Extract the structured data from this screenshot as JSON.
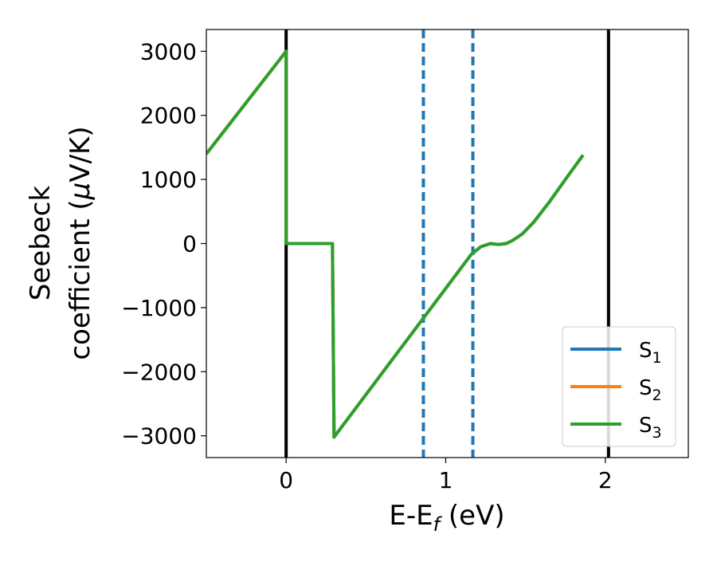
{
  "chart_data": {
    "type": "line",
    "title": "",
    "xlabel": {
      "main": "E-E",
      "sub": "f",
      "tail": " (eV)"
    },
    "ylabel": {
      "line1": "Seebeck",
      "line2_prefix": "coefficient  (",
      "mu": "μ",
      "line2_suffix": "V/K)"
    },
    "xlim": [
      -0.5,
      2.52
    ],
    "ylim": [
      -3340,
      3340
    ],
    "xticks": [
      0,
      1,
      2
    ],
    "xtick_labels": [
      "0",
      "1",
      "2"
    ],
    "yticks": [
      3000,
      2000,
      1000,
      0,
      -1000,
      -2000,
      -3000
    ],
    "ytick_labels": [
      "3000",
      "2000",
      "1000",
      "0",
      "−1000",
      "−2000",
      "−3000"
    ],
    "grid": false,
    "legend_position": "lower-right",
    "series": [
      {
        "name": "S",
        "sub": "1",
        "color": "#1f77b4",
        "points": [
          [
            -0.5,
            1400
          ],
          [
            0.0,
            3000
          ],
          [
            0.0,
            0
          ],
          [
            0.29,
            0
          ],
          [
            0.3,
            -3020
          ],
          [
            1.16,
            -170
          ],
          [
            1.22,
            -50
          ],
          [
            1.28,
            0
          ],
          [
            1.33,
            -15
          ],
          [
            1.38,
            0
          ],
          [
            1.42,
            50
          ],
          [
            1.48,
            150
          ],
          [
            1.55,
            330
          ],
          [
            1.65,
            650
          ],
          [
            1.75,
            1000
          ],
          [
            1.86,
            1380
          ]
        ]
      },
      {
        "name": "S",
        "sub": "2",
        "color": "#ff7f0e",
        "points": [
          [
            -0.5,
            1400
          ],
          [
            0.0,
            3000
          ],
          [
            0.0,
            0
          ],
          [
            0.29,
            0
          ],
          [
            0.3,
            -3020
          ],
          [
            1.16,
            -170
          ],
          [
            1.22,
            -50
          ],
          [
            1.28,
            0
          ],
          [
            1.33,
            -15
          ],
          [
            1.38,
            0
          ],
          [
            1.42,
            50
          ],
          [
            1.48,
            150
          ],
          [
            1.55,
            330
          ],
          [
            1.65,
            650
          ],
          [
            1.75,
            1000
          ],
          [
            1.86,
            1380
          ]
        ]
      },
      {
        "name": "S",
        "sub": "3",
        "color": "#2ca02c",
        "points": [
          [
            -0.5,
            1400
          ],
          [
            0.0,
            3000
          ],
          [
            0.0,
            0
          ],
          [
            0.29,
            0
          ],
          [
            0.3,
            -3020
          ],
          [
            1.16,
            -170
          ],
          [
            1.22,
            -50
          ],
          [
            1.28,
            0
          ],
          [
            1.33,
            -15
          ],
          [
            1.38,
            0
          ],
          [
            1.42,
            50
          ],
          [
            1.48,
            150
          ],
          [
            1.55,
            330
          ],
          [
            1.65,
            650
          ],
          [
            1.75,
            1000
          ],
          [
            1.86,
            1380
          ]
        ]
      }
    ],
    "vlines_solid": [
      0.0,
      2.02
    ],
    "vlines_dashed": [
      0.86,
      1.17
    ],
    "vline_solid_color": "#000000",
    "vline_dashed_color": "#1f77b4"
  }
}
